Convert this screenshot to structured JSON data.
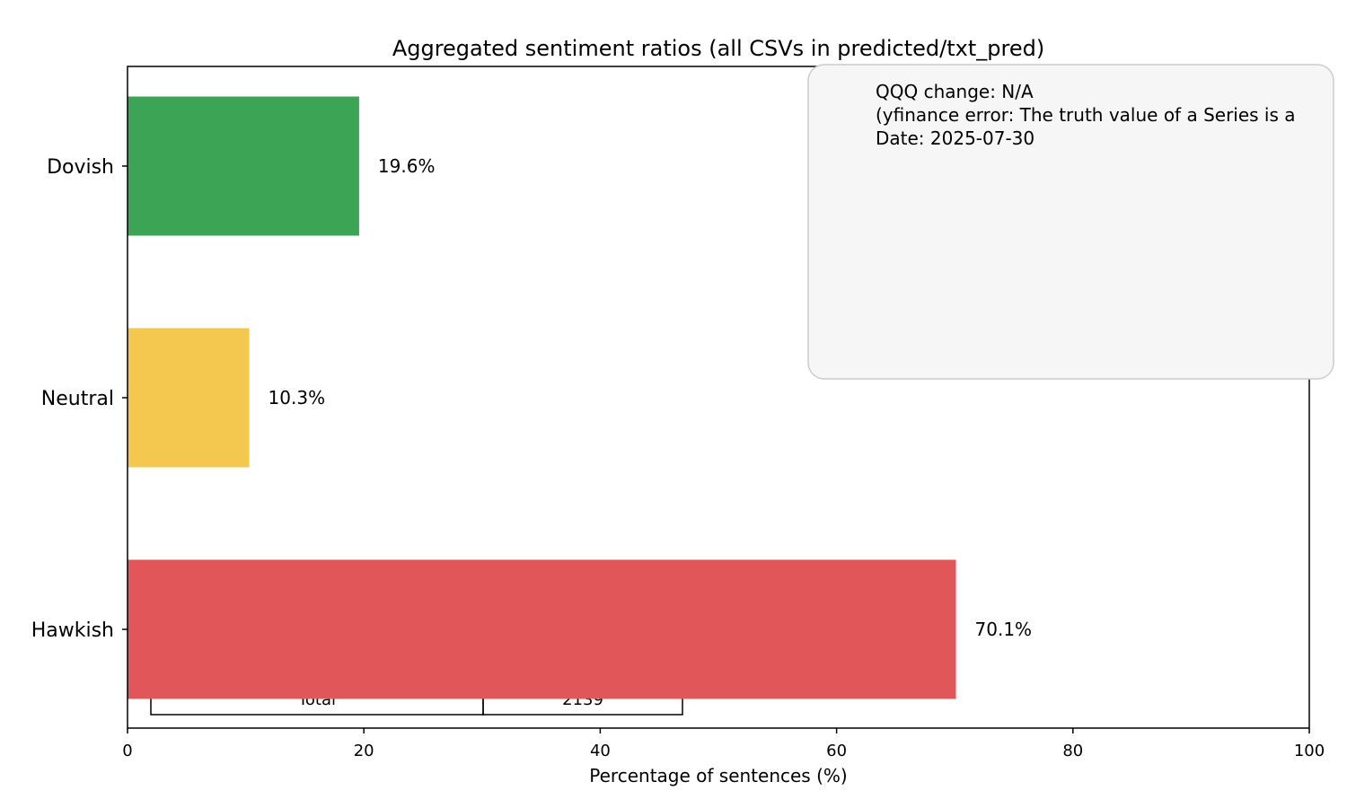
{
  "chart_data": {
    "type": "bar",
    "orientation": "horizontal",
    "title": "Aggregated sentiment ratios (all CSVs in predicted/txt_pred)",
    "xlabel": "Percentage of sentences (%)",
    "ylabel": "",
    "xlim": [
      0,
      100
    ],
    "xticks": [
      0,
      20,
      40,
      60,
      80,
      100
    ],
    "grid": false,
    "categories": [
      "Dovish",
      "Neutral",
      "Hawkish"
    ],
    "values": [
      19.6,
      10.3,
      70.1
    ],
    "value_labels": [
      "19.6%",
      "10.3%",
      "70.1%"
    ],
    "colors": [
      "#3ba555",
      "#f4c74e",
      "#e05659"
    ],
    "annotation": {
      "lines": [
        "QQQ change: N/A",
        "(yfinance error: The truth value of a Series is a",
        "Date: 2025-07-30"
      ],
      "background": "#f6f6f6",
      "border": "#cccccc"
    },
    "table": {
      "label": "Total",
      "value": "2139"
    }
  }
}
